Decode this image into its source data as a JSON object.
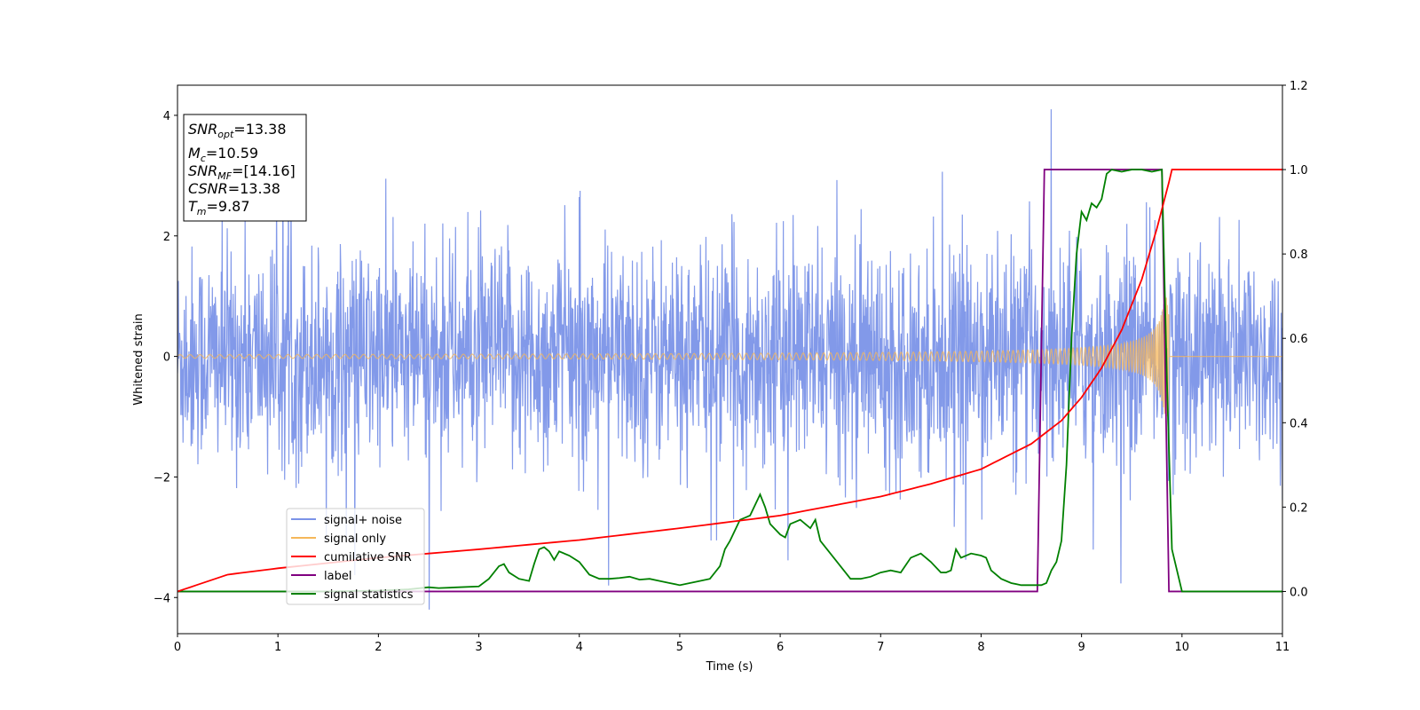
{
  "chart_data": {
    "type": "line",
    "xlabel": "Time (s)",
    "ylabel": "Whitened strain",
    "xlim": [
      0,
      11
    ],
    "ylim": [
      -4.6,
      4.5
    ],
    "y2lim": [
      -0.1,
      1.2
    ],
    "x_ticks": [
      "0",
      "1",
      "2",
      "3",
      "4",
      "5",
      "6",
      "7",
      "8",
      "9",
      "10",
      "11"
    ],
    "y_ticks": [
      "4",
      "2",
      "0",
      "−2",
      "−4"
    ],
    "y_tick_values": [
      4,
      2,
      0,
      -2,
      -4
    ],
    "y2_ticks": [
      "1.2",
      "1.0",
      "0.8",
      "0.6",
      "0.4",
      "0.2",
      "0.0"
    ],
    "y2_tick_values": [
      1.2,
      1.0,
      0.8,
      0.6,
      0.4,
      0.2,
      0.0
    ],
    "legend_position": "lower-left",
    "grid": false,
    "info_box": {
      "snr_opt": {
        "var": "SNR",
        "sub": "opt",
        "value": "=13.38"
      },
      "mc": {
        "var": "M",
        "sub": "c",
        "value": "=10.59"
      },
      "snr_mf": {
        "var": "SNR",
        "sub": "MF",
        "value": "=[14.16]"
      },
      "csnr": {
        "var": "CSNR",
        "sub": "",
        "value": "=13.38"
      },
      "tm": {
        "var": "T",
        "sub": "m",
        "value": "=9.87"
      }
    },
    "series": [
      {
        "name": "signal+ noise",
        "color": "#7b93e8",
        "axis": "left",
        "description_values": "whitened noise with envelope approx ±2 (peaks to ±4), duration 0–11 s"
      },
      {
        "name": "signal only",
        "color": "#f5b75a",
        "axis": "left",
        "chirp": {
          "t_start": 0,
          "t_merge": 9.87,
          "amp_start": 0.03,
          "amp_merge": 1.0
        }
      },
      {
        "name": "cumilative SNR",
        "color": "#ff0000",
        "axis": "right",
        "x": [
          0,
          0.5,
          1,
          2,
          3,
          4,
          5,
          6,
          7,
          7.5,
          8,
          8.5,
          8.8,
          9.0,
          9.2,
          9.4,
          9.6,
          9.75,
          9.87,
          9.9,
          11
        ],
        "y": [
          0.0,
          0.04,
          0.055,
          0.08,
          0.1,
          0.122,
          0.15,
          0.18,
          0.225,
          0.255,
          0.29,
          0.35,
          0.405,
          0.46,
          0.53,
          0.62,
          0.74,
          0.86,
          0.97,
          1.0,
          1.0
        ]
      },
      {
        "name": "label",
        "color": "#800080",
        "axis": "right",
        "x": [
          0,
          8.56,
          8.63,
          9.8,
          9.87,
          11
        ],
        "y": [
          0,
          0,
          1,
          1,
          0,
          0
        ]
      },
      {
        "name": "signal statistics",
        "color": "#008000",
        "axis": "right",
        "x": [
          0,
          0.5,
          1,
          1.5,
          2,
          2.3,
          2.5,
          2.6,
          2.8,
          3.0,
          3.1,
          3.2,
          3.25,
          3.3,
          3.4,
          3.5,
          3.55,
          3.6,
          3.65,
          3.7,
          3.75,
          3.8,
          3.9,
          4.0,
          4.1,
          4.2,
          4.3,
          4.4,
          4.5,
          4.6,
          4.7,
          4.8,
          4.9,
          5.0,
          5.2,
          5.3,
          5.4,
          5.45,
          5.5,
          5.6,
          5.65,
          5.7,
          5.8,
          5.85,
          5.9,
          6.0,
          6.05,
          6.1,
          6.2,
          6.3,
          6.35,
          6.4,
          6.5,
          6.6,
          6.7,
          6.8,
          6.9,
          7.0,
          7.1,
          7.2,
          7.3,
          7.4,
          7.5,
          7.6,
          7.65,
          7.7,
          7.75,
          7.8,
          7.9,
          8.0,
          8.05,
          8.1,
          8.2,
          8.3,
          8.4,
          8.5,
          8.6,
          8.65,
          8.7,
          8.75,
          8.8,
          8.85,
          8.9,
          8.95,
          9.0,
          9.05,
          9.1,
          9.15,
          9.2,
          9.25,
          9.3,
          9.4,
          9.5,
          9.6,
          9.7,
          9.8,
          9.85,
          9.9,
          10.0,
          11
        ],
        "y": [
          0,
          0,
          0,
          0,
          0.002,
          0.005,
          0.01,
          0.008,
          0.01,
          0.012,
          0.03,
          0.06,
          0.065,
          0.045,
          0.03,
          0.025,
          0.065,
          0.1,
          0.105,
          0.095,
          0.075,
          0.095,
          0.085,
          0.07,
          0.04,
          0.03,
          0.03,
          0.032,
          0.035,
          0.028,
          0.03,
          0.025,
          0.02,
          0.015,
          0.025,
          0.03,
          0.06,
          0.1,
          0.12,
          0.17,
          0.175,
          0.18,
          0.23,
          0.2,
          0.16,
          0.135,
          0.128,
          0.16,
          0.17,
          0.15,
          0.17,
          0.12,
          0.09,
          0.06,
          0.03,
          0.03,
          0.035,
          0.045,
          0.05,
          0.045,
          0.08,
          0.09,
          0.07,
          0.045,
          0.045,
          0.05,
          0.1,
          0.08,
          0.09,
          0.085,
          0.08,
          0.05,
          0.03,
          0.02,
          0.015,
          0.015,
          0.015,
          0.02,
          0.05,
          0.07,
          0.12,
          0.3,
          0.6,
          0.8,
          0.9,
          0.88,
          0.92,
          0.91,
          0.93,
          0.99,
          1.0,
          0.995,
          1.0,
          1.0,
          0.995,
          1.0,
          0.5,
          0.1,
          0.0,
          0.0
        ]
      }
    ]
  }
}
